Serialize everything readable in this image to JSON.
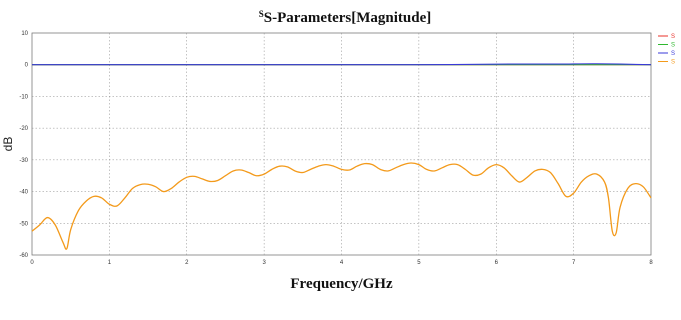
{
  "chart_data": {
    "type": "line",
    "title_prefix": "S",
    "title": "S-Parameters[Magnitude]",
    "xlabel": "Frequency/GHz",
    "ylabel": "dB",
    "xlim": [
      0,
      8
    ],
    "ylim": [
      -60,
      10
    ],
    "xticks": [
      0,
      1,
      2,
      3,
      4,
      5,
      6,
      7,
      8
    ],
    "yticks": [
      10,
      0,
      -10,
      -20,
      -30,
      -40,
      -50,
      -60
    ],
    "grid": true,
    "legend_position": "right",
    "series": [
      {
        "name": "S",
        "color": "#e8302a",
        "x": [
          0,
          8
        ],
        "y": [
          0,
          0
        ]
      },
      {
        "name": "S",
        "color": "#2fb82f",
        "x": [
          0,
          8
        ],
        "y": [
          0,
          0
        ]
      },
      {
        "name": "S",
        "color": "#3a3ad8",
        "x": [
          0,
          1,
          2,
          3,
          4,
          5,
          5.6,
          6.2,
          6.8,
          7.3,
          8
        ],
        "y": [
          0,
          0,
          0,
          0,
          0,
          0,
          0.1,
          0.2,
          0.2,
          0.3,
          0
        ]
      },
      {
        "name": "S",
        "color": "#f39a1b",
        "x": [
          0,
          0.1,
          0.2,
          0.3,
          0.4,
          0.45,
          0.5,
          0.6,
          0.7,
          0.8,
          0.9,
          1.0,
          1.1,
          1.2,
          1.3,
          1.4,
          1.5,
          1.6,
          1.7,
          1.8,
          1.9,
          2.0,
          2.1,
          2.2,
          2.3,
          2.4,
          2.5,
          2.6,
          2.7,
          2.8,
          2.9,
          3.0,
          3.1,
          3.2,
          3.3,
          3.4,
          3.5,
          3.6,
          3.7,
          3.8,
          3.9,
          4.0,
          4.1,
          4.2,
          4.3,
          4.4,
          4.5,
          4.6,
          4.7,
          4.8,
          4.9,
          5.0,
          5.1,
          5.2,
          5.3,
          5.4,
          5.5,
          5.6,
          5.7,
          5.8,
          5.9,
          6.0,
          6.1,
          6.2,
          6.3,
          6.4,
          6.5,
          6.6,
          6.7,
          6.8,
          6.9,
          7.0,
          7.1,
          7.2,
          7.3,
          7.4,
          7.45,
          7.5,
          7.55,
          7.6,
          7.7,
          7.8,
          7.9,
          8.0
        ],
        "y": [
          -52.5,
          -50.5,
          -48.2,
          -50.5,
          -56,
          -58,
          -52,
          -46,
          -43,
          -41.5,
          -42,
          -44,
          -44.5,
          -42,
          -39,
          -37.8,
          -37.7,
          -38.5,
          -40,
          -39,
          -37,
          -35.5,
          -35.2,
          -36,
          -36.8,
          -36.5,
          -35,
          -33.5,
          -33.2,
          -34,
          -35,
          -34.5,
          -33,
          -32,
          -32.2,
          -33.5,
          -34,
          -33,
          -32,
          -31.5,
          -32,
          -33,
          -33.2,
          -32,
          -31.2,
          -31.5,
          -33,
          -33.5,
          -32.5,
          -31.5,
          -31,
          -31.5,
          -33,
          -33.5,
          -32.5,
          -31.5,
          -31.5,
          -33,
          -34.8,
          -34.5,
          -32.5,
          -31.5,
          -32.5,
          -35,
          -37,
          -35.5,
          -33.5,
          -33,
          -34,
          -37.5,
          -41.5,
          -40.5,
          -37,
          -35,
          -34.5,
          -37,
          -42,
          -52.5,
          -53,
          -45,
          -39,
          -37.5,
          -38.5,
          -42
        ]
      }
    ]
  }
}
